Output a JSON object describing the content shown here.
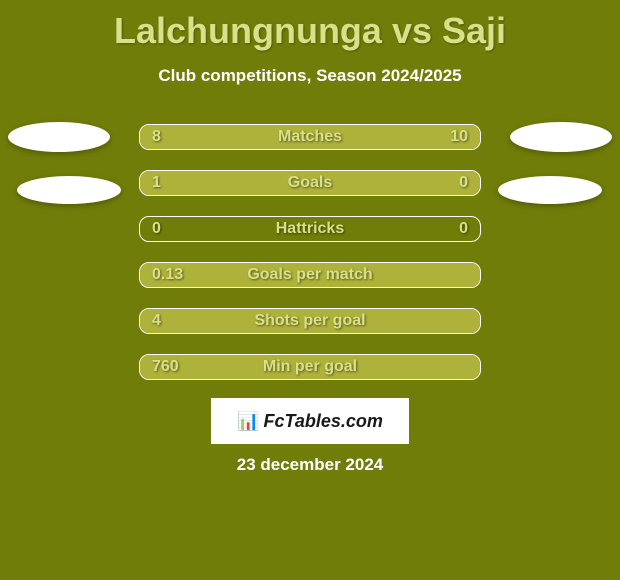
{
  "title": "Lalchungnunga vs Saji",
  "subtitle": "Club competitions, Season 2024/2025",
  "date": "23 december 2024",
  "logo": "FcTables.com",
  "colors": {
    "background": "#717d09",
    "bar_fill": "#aeb23a",
    "text_highlight": "#d9e08a",
    "text_white": "#ffffff",
    "oval": "#ffffff",
    "logo_bg": "#ffffff",
    "logo_text": "#1a1a1a"
  },
  "stats": [
    {
      "label": "Matches",
      "left_value": "8",
      "right_value": "10",
      "left_pct": 42,
      "right_pct": 58
    },
    {
      "label": "Goals",
      "left_value": "1",
      "right_value": "0",
      "left_pct": 76,
      "right_pct": 24
    },
    {
      "label": "Hattricks",
      "left_value": "0",
      "right_value": "0",
      "left_pct": 0,
      "right_pct": 0
    },
    {
      "label": "Goals per match",
      "left_value": "0.13",
      "right_value": "",
      "left_pct": 100,
      "right_pct": 0
    },
    {
      "label": "Shots per goal",
      "left_value": "4",
      "right_value": "",
      "left_pct": 100,
      "right_pct": 0
    },
    {
      "label": "Min per goal",
      "left_value": "760",
      "right_value": "",
      "left_pct": 100,
      "right_pct": 0
    }
  ]
}
